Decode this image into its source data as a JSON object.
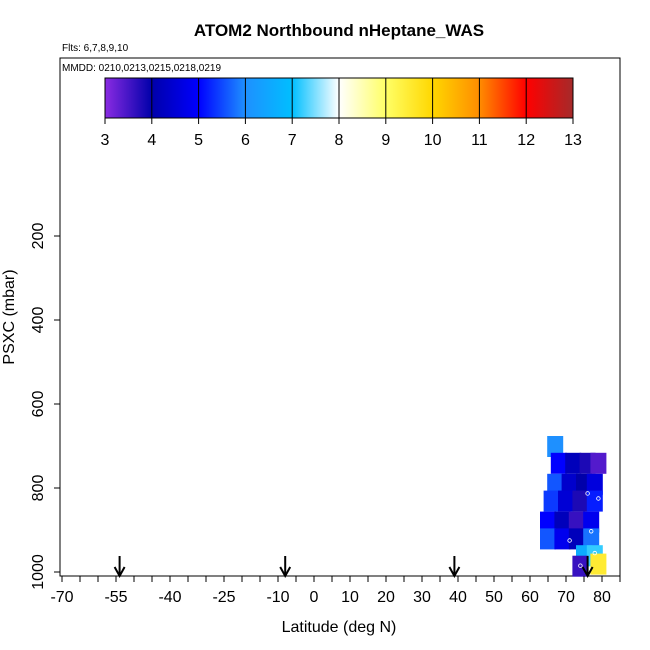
{
  "chart_data": {
    "type": "heatmap",
    "title": "ATOM2 Northbound nHeptane_WAS",
    "annotation_flights": "Flts: 6,7,8,9,10",
    "annotation_dates": "MMDD: 0210,0213,0215,0218,0219",
    "xlabel": "Latitude (deg N)",
    "ylabel": "PSXC (mbar)",
    "xlim": [
      -70,
      85
    ],
    "ylim": [
      1000,
      0
    ],
    "y_reversed": true,
    "x_ticks": [
      "-70",
      "-55",
      "-40",
      "-25",
      "-10",
      "0",
      "10",
      "20",
      "30",
      "40",
      "50",
      "60",
      "70",
      "80"
    ],
    "y_ticks": [
      "200",
      "400",
      "600",
      "800",
      "1000"
    ],
    "colorbar": {
      "min": 3,
      "max": 13,
      "tick_labels": [
        "3",
        "4",
        "5",
        "6",
        "7",
        "8",
        "9",
        "10",
        "11",
        "12",
        "13"
      ],
      "colors": [
        "#8a2be2",
        "#0000aa",
        "#0000ff",
        "#1e90ff",
        "#00bfff",
        "#ffffff",
        "#ffff66",
        "#ffd700",
        "#ff8c00",
        "#ff0000",
        "#a52a2a"
      ]
    },
    "flight_markers_lat": [
      -54,
      -8,
      39,
      76
    ],
    "cells": [
      {
        "lat": 67,
        "p": 700,
        "v": 6.0
      },
      {
        "lat": 68,
        "p": 740,
        "v": 5.0
      },
      {
        "lat": 72,
        "p": 740,
        "v": 4.2
      },
      {
        "lat": 76,
        "p": 740,
        "v": 3.8
      },
      {
        "lat": 79,
        "p": 740,
        "v": 3.4
      },
      {
        "lat": 67,
        "p": 790,
        "v": 5.6
      },
      {
        "lat": 71,
        "p": 790,
        "v": 4.4
      },
      {
        "lat": 75,
        "p": 790,
        "v": 4.0
      },
      {
        "lat": 78,
        "p": 790,
        "v": 4.6
      },
      {
        "lat": 66,
        "p": 830,
        "v": 5.4
      },
      {
        "lat": 70,
        "p": 830,
        "v": 4.5
      },
      {
        "lat": 74,
        "p": 830,
        "v": 3.8
      },
      {
        "lat": 78,
        "p": 830,
        "v": 5.2
      },
      {
        "lat": 65,
        "p": 880,
        "v": 5.0
      },
      {
        "lat": 69,
        "p": 880,
        "v": 4.2
      },
      {
        "lat": 73,
        "p": 880,
        "v": 3.6
      },
      {
        "lat": 77,
        "p": 880,
        "v": 4.8
      },
      {
        "lat": 65,
        "p": 920,
        "v": 5.6
      },
      {
        "lat": 69,
        "p": 920,
        "v": 4.8
      },
      {
        "lat": 73,
        "p": 920,
        "v": 4.2
      },
      {
        "lat": 77,
        "p": 920,
        "v": 5.8
      },
      {
        "lat": 75,
        "p": 960,
        "v": 6.6
      },
      {
        "lat": 78,
        "p": 960,
        "v": 7.2
      },
      {
        "lat": 79,
        "p": 980,
        "v": 9.5
      },
      {
        "lat": 74,
        "p": 985,
        "v": 3.6
      }
    ],
    "sample_points": [
      {
        "lat": 76,
        "p": 813
      },
      {
        "lat": 79,
        "p": 825
      },
      {
        "lat": 77,
        "p": 903
      },
      {
        "lat": 71,
        "p": 925
      },
      {
        "lat": 64,
        "p": 958
      },
      {
        "lat": 72,
        "p": 952
      },
      {
        "lat": 78,
        "p": 955
      },
      {
        "lat": 74,
        "p": 985
      }
    ]
  }
}
